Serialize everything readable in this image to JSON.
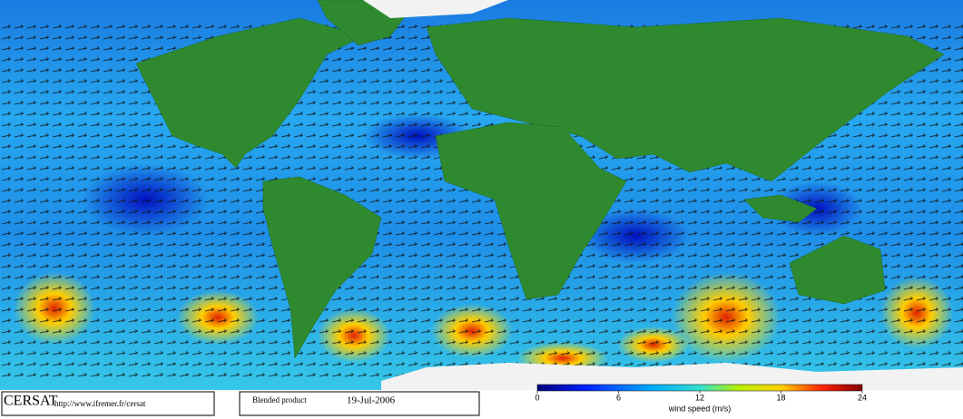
{
  "footer": {
    "logo": "CERSAT",
    "url": "http://www.ifremer.fr/cersat",
    "product": "Blended product",
    "date": "19-Jul-2006"
  },
  "colorbar": {
    "label": "wind speed (m/s)",
    "range": [
      0,
      24
    ],
    "ticks": [
      0,
      6,
      12,
      18,
      24
    ]
  }
}
